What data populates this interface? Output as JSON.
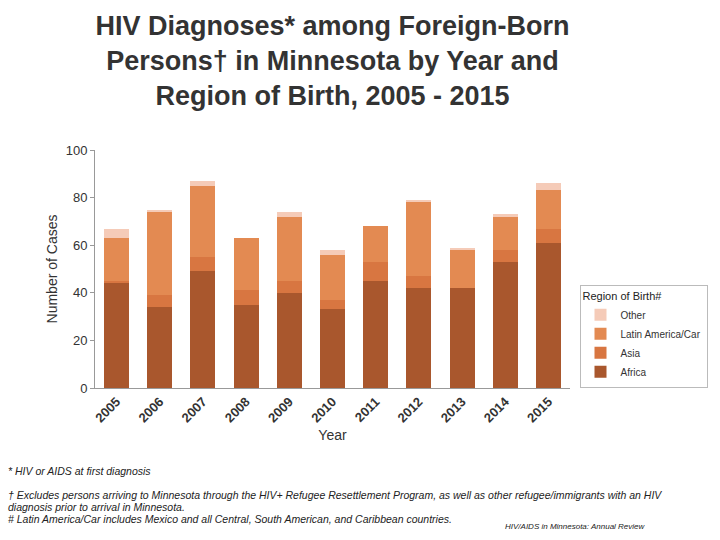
{
  "chart_data": {
    "type": "bar",
    "title": "HIV Diagnoses* among Foreign-Born\nPersons† in Minnesota by Year and\nRegion of Birth, 2005 - 2015",
    "x_label": "Year",
    "y_label": "Number of Cases",
    "categories": [
      "2005",
      "2006",
      "2007",
      "2008",
      "2009",
      "2010",
      "2011",
      "2012",
      "2013",
      "2014",
      "2015"
    ],
    "series": [
      {
        "name": "Africa",
        "color": "#a9572d",
        "values": [
          44,
          34,
          49,
          35,
          40,
          33,
          45,
          42,
          42,
          53,
          61
        ]
      },
      {
        "name": "Asia",
        "color": "#d87641",
        "values": [
          1,
          5,
          6,
          6,
          5,
          4,
          8,
          5,
          0,
          5,
          6
        ]
      },
      {
        "name": "Latin America/Car",
        "color": "#e38a52",
        "values": [
          18,
          35,
          30,
          22,
          27,
          19,
          15,
          31,
          16,
          14,
          16
        ]
      },
      {
        "name": "Other",
        "color": "#f5cbb8",
        "values": [
          4,
          1,
          2,
          0,
          2,
          2,
          0,
          1,
          1,
          1,
          3
        ]
      }
    ],
    "stacked": true,
    "grid": false,
    "legend": "bottom right",
    "legend_title": "Region of Birth#",
    "ylim": [
      0,
      100
    ],
    "yticks": [
      0,
      20,
      40,
      60,
      80,
      100
    ],
    "notes": [
      "* HIV or AIDS at first diagnosis",
      "† Excludes persons arriving to Minnesota through the HIV+ Refugee Resettlement Program, as well as other refugee/immigrants with an HIV diagnosis prior to arrival in Minnesota.",
      "# Latin America/Car includes Mexico and all Central, South American, and Caribbean countries."
    ],
    "source": "HIV/AIDS in Minnesota: Annual Review"
  }
}
